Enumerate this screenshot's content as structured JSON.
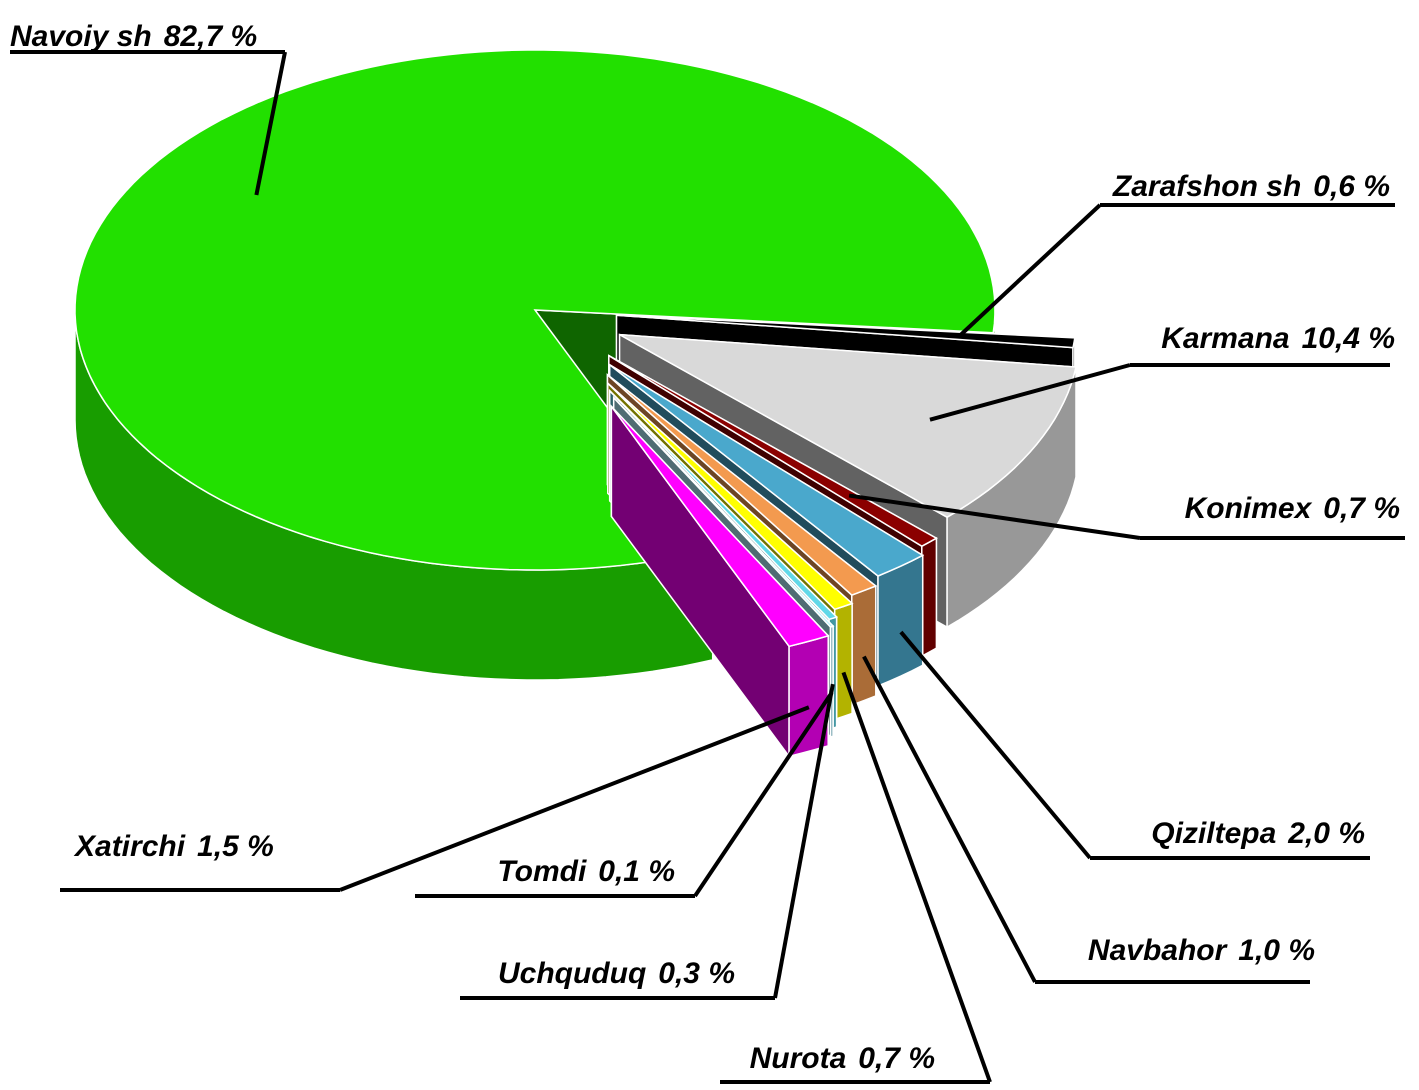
{
  "chart_data": {
    "type": "pie",
    "categories": [
      "Navoiy sh",
      "Zarafshon sh",
      "Karmana",
      "Konimex",
      "Qiziltepa",
      "Navbahor",
      "Nurota",
      "Uchquduq",
      "Tomdi",
      "Xatirchi"
    ],
    "values": [
      82.7,
      0.6,
      10.4,
      0.7,
      2.0,
      1.0,
      0.7,
      0.3,
      0.1,
      1.5
    ],
    "value_labels": [
      "82,7 %",
      "0,6 %",
      "10,4 %",
      "0,7 %",
      "2,0 %",
      "1,0 %",
      "0,7 %",
      "0,3 %",
      "0,1 %",
      "1,5 %"
    ],
    "colors": [
      "#22e000",
      "#000000",
      "#d9d9d9",
      "#8b0000",
      "#4aa8cc",
      "#f39a4f",
      "#ffff00",
      "#60d8e8",
      "#b0f0ff",
      "#ff00ff"
    ]
  }
}
